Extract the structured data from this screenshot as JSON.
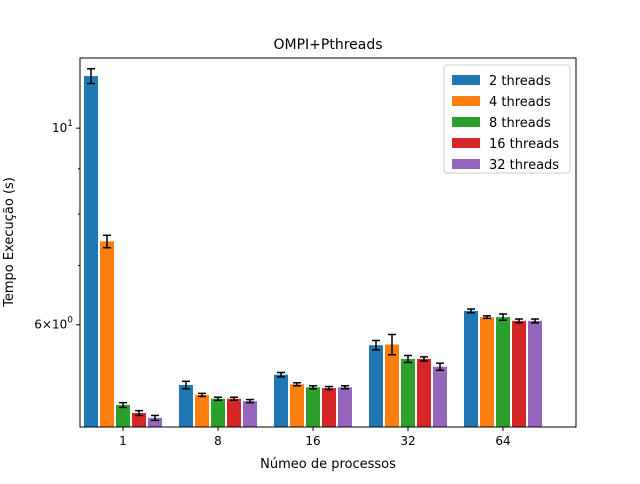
{
  "chart_data": {
    "type": "bar",
    "title": "OMPI+Pthreads",
    "xlabel": "Númeo de processos",
    "ylabel": "Tempo Execução (s)",
    "y_scale": "log",
    "ylim": [
      4.6,
      12.0
    ],
    "categories": [
      "1",
      "8",
      "16",
      "32",
      "64"
    ],
    "y_tick_labels": [
      "$10^1$",
      "$6\\times10^0$"
    ],
    "y_major_ticks": [
      {
        "value": 10,
        "base": "10",
        "exp": "1",
        "mantissa": ""
      },
      {
        "value": 6,
        "base": "10",
        "exp": "0",
        "mantissa": "6×"
      }
    ],
    "y_minor_ticks": [
      7,
      8,
      9
    ],
    "legend_position": "top-right",
    "grid": false,
    "series": [
      {
        "name": "2 threads",
        "color": "#1f77b4",
        "values": [
          11.45,
          5.13,
          5.27,
          5.69,
          6.22
        ],
        "errors": [
          0.22,
          0.05,
          0.03,
          0.07,
          0.03
        ]
      },
      {
        "name": "4 threads",
        "color": "#ff7f0e",
        "values": [
          7.45,
          5.0,
          5.14,
          5.7,
          6.12
        ],
        "errors": [
          0.12,
          0.02,
          0.02,
          0.15,
          0.02
        ]
      },
      {
        "name": "8 threads",
        "color": "#2ca02c",
        "values": [
          4.87,
          4.95,
          5.1,
          5.49,
          6.12
        ],
        "errors": [
          0.03,
          0.02,
          0.02,
          0.05,
          0.05
        ]
      },
      {
        "name": "16 threads",
        "color": "#d62728",
        "values": [
          4.77,
          4.95,
          5.09,
          5.49,
          6.06
        ],
        "errors": [
          0.03,
          0.02,
          0.02,
          0.03,
          0.03
        ]
      },
      {
        "name": "32 threads",
        "color": "#9467bd",
        "values": [
          4.71,
          4.92,
          5.1,
          5.38,
          6.06
        ],
        "errors": [
          0.03,
          0.02,
          0.02,
          0.05,
          0.03
        ]
      }
    ]
  }
}
